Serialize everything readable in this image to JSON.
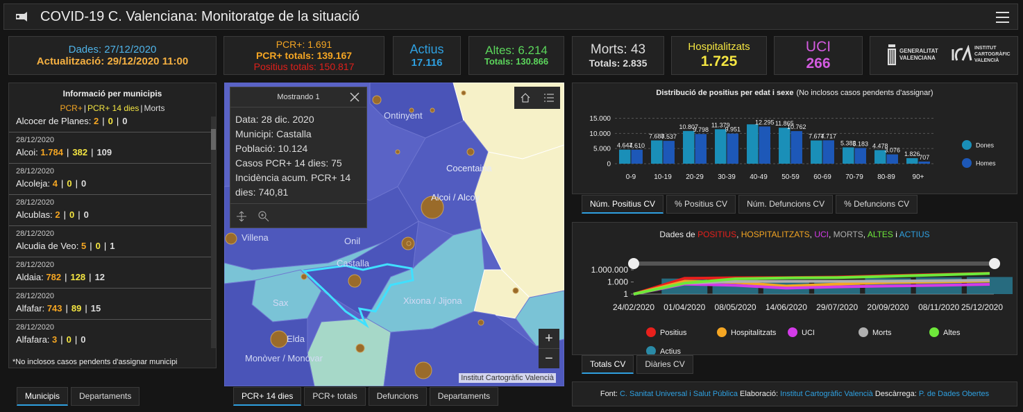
{
  "header": {
    "title": "COVID-19 C. Valenciana: Monitoratge de la situació"
  },
  "indicators": {
    "dades": "Dades: 27/12/2020",
    "actualitzacio": "Actualització: 29/12/2020 11:00",
    "pcr": "PCR+: 1.691",
    "pcr_totals": "PCR+ totals: 139.167",
    "positius_totals": "Positius totals: 150.817",
    "actius_label": "Actius",
    "actius_value": "17.116",
    "altes": "Altes: 6.214",
    "altes_totals": "Totals: 130.866",
    "morts": "Morts: 43",
    "morts_totals": "Totals: 2.835",
    "hosp_label": "Hospitalitzats",
    "hosp_value": "1.725",
    "uci_label": "UCI",
    "uci_value": "266"
  },
  "logos": {
    "generalitat": [
      "GENERALITAT",
      "VALENCIANA"
    ],
    "icv": [
      "INSTITUT",
      "CARTOGRÀFIC",
      "VALENCIÀ"
    ]
  },
  "municipis": {
    "title": "Informació per municipis",
    "legend": [
      "PCR+",
      "PCR+ 14 dies",
      "Morts"
    ],
    "separator": "|",
    "items": [
      {
        "name": "Alcocer de Planes:",
        "values": [
          "2",
          "0",
          "0"
        ]
      },
      {
        "date": "28/12/2020",
        "name": "Alcoi:",
        "values": [
          "1.784",
          "382",
          "109"
        ]
      },
      {
        "date": "28/12/2020",
        "name": "Alcoleja:",
        "values": [
          "4",
          "0",
          "0"
        ]
      },
      {
        "date": "28/12/2020",
        "name": "Alcublas:",
        "values": [
          "2",
          "0",
          "0"
        ]
      },
      {
        "date": "28/12/2020",
        "name": "Alcudia de Veo:",
        "values": [
          "5",
          "0",
          "1"
        ]
      },
      {
        "date": "28/12/2020",
        "name": "Aldaia:",
        "values": [
          "782",
          "128",
          "12"
        ]
      },
      {
        "date": "28/12/2020",
        "name": "Alfafar:",
        "values": [
          "743",
          "89",
          "15"
        ]
      },
      {
        "date": "28/12/2020",
        "name": "Alfafara:",
        "values": [
          "3",
          "0",
          "0"
        ]
      }
    ],
    "note": "*No inclosos casos pendents d'assignar municipi",
    "tabs": [
      "Municipis",
      "Departaments"
    ],
    "active_tab": 0
  },
  "map": {
    "popup_title": "Mostrando 1",
    "popup_lines": [
      "Data: 28 dic. 2020",
      "Municipi: Castalla",
      "Població: 10.124",
      "Casos PCR+ 14 dies: 75",
      "Incidència acum. PCR+ 14 dies: 740,81"
    ],
    "places": [
      "Ontinyent",
      "Cocentaina",
      "Alcoi / Alcoy",
      "Villena",
      "Onil",
      "Castalla",
      "Sax",
      "Xixona / Jijona",
      "Elda",
      "Monòver / Monóvar"
    ],
    "zoom": [
      "+",
      "−"
    ],
    "attribution": "Institut Cartogràfic Valencià",
    "tabs": [
      "PCR+ 14 dies",
      "PCR+ totals",
      "Defuncions",
      "Departaments"
    ],
    "active_tab": 0
  },
  "chart_data": [
    {
      "type": "bar",
      "title": "Distribució de positius per edat i sexe",
      "subtitle": "(No inclosos casos pendents d'assignar)",
      "categories": [
        "0-9",
        "10-19",
        "20-29",
        "30-39",
        "40-49",
        "50-59",
        "60-69",
        "70-79",
        "80-89",
        "90+"
      ],
      "series": [
        {
          "name": "Dones",
          "color": "#1a8fb8",
          "values": [
            4647,
            7688,
            10807,
            11379,
            13000,
            11865,
            7674,
            5383,
            4478,
            1826
          ],
          "value_labels": [
            "4.647",
            "7.688",
            "10.807",
            "11.379",
            null,
            "11.865",
            "7.674",
            "5.383",
            "4.478",
            "1.826"
          ]
        },
        {
          "name": "Homes",
          "color": "#1d58b8",
          "values": [
            4610,
            7537,
            9798,
            9951,
            12295,
            10762,
            7717,
            5183,
            3076,
            707
          ],
          "value_labels": [
            "4.610",
            "7.537",
            "9.798",
            "9.951",
            "12.295",
            "10.762",
            "7.717",
            "5.183",
            "3.076",
            "707"
          ]
        }
      ],
      "ylim": [
        0,
        16500
      ],
      "yticks": [
        0,
        {
          "value": 5000,
          "label": "5.000"
        },
        {
          "value": 10000,
          "label": "10.000"
        },
        {
          "value": 15000,
          "label": "15.000"
        }
      ],
      "grid": true,
      "legend": "right",
      "tabs": [
        "Núm. Positius CV",
        "% Positius CV",
        "Núm. Defuncions CV",
        "% Defuncions CV"
      ],
      "active_tab": 0
    },
    {
      "type": "line",
      "title_parts": [
        {
          "text": "Dades de "
        },
        {
          "text": "POSITIUS",
          "color": "#e8201c"
        },
        {
          "text": ", "
        },
        {
          "text": "HOSPITALITZATS",
          "color": "#f5a623"
        },
        {
          "text": ", "
        },
        {
          "text": "UCI",
          "color": "#d33be8"
        },
        {
          "text": ", "
        },
        {
          "text": "MORTS",
          "color": "#b0b0b0"
        },
        {
          "text": ", "
        },
        {
          "text": "ALTES",
          "color": "#6ee83a"
        },
        {
          "text": " i "
        },
        {
          "text": "ACTIUS",
          "color": "#2fa0e0"
        }
      ],
      "x": [
        "24/02/2020",
        "01/04/2020",
        "08/05/2020",
        "14/06/2020",
        "29/07/2020",
        "20/09/2020",
        "08/11/2020",
        "25/12/2020"
      ],
      "series": [
        {
          "name": "Positius",
          "color": "#e8201c",
          "values": [
            1,
            8000,
            11000,
            12000,
            16000,
            35000,
            70000,
            145000
          ]
        },
        {
          "name": "Hospitalitzats",
          "color": "#f5a623",
          "values": [
            1,
            1500,
            800,
            100,
            300,
            700,
            1000,
            1700
          ]
        },
        {
          "name": "UCI",
          "color": "#d33be8",
          "values": [
            1,
            300,
            150,
            30,
            60,
            100,
            150,
            260
          ]
        },
        {
          "name": "Morts",
          "color": "#b0b0b0",
          "values": [
            1,
            500,
            1300,
            1400,
            1450,
            1600,
            2000,
            2800
          ]
        },
        {
          "name": "Altes",
          "color": "#6ee83a",
          "values": [
            1,
            500,
            6000,
            10000,
            12000,
            25000,
            55000,
            130000
          ]
        },
        {
          "name": "Actius",
          "color": "#2a8aa6",
          "style": "bar",
          "values": [
            1,
            7000,
            3000,
            1000,
            3000,
            9000,
            14000,
            17000
          ]
        }
      ],
      "log_scale": true,
      "ylim": [
        1,
        5000000
      ],
      "yticks": [
        1,
        {
          "value": 1000,
          "label": "1.000"
        },
        {
          "value": 1000000,
          "label": "1.000.000"
        }
      ],
      "legend": "bottom",
      "tabs": [
        "Totals CV",
        "Diàries CV"
      ],
      "active_tab": 0
    }
  ],
  "footer": [
    {
      "text": "Font: "
    },
    {
      "text": "C. Sanitat Universal i Salut Pública",
      "link": true
    },
    {
      "text": " Elaboració: "
    },
    {
      "text": "Institut Cartogràfic Valencià",
      "link": true
    },
    {
      "text": " Descàrrega: "
    },
    {
      "text": "P. de Dades Obertes",
      "link": true
    }
  ]
}
